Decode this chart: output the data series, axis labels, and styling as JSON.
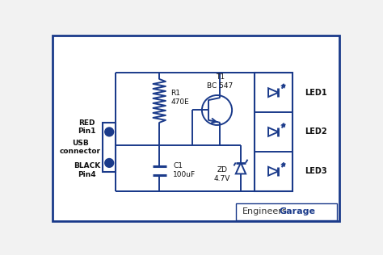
{
  "bg_color": "#f2f2f2",
  "circuit_color": "#1a3a8a",
  "line_color": "#1a3a8a",
  "text_color": "#111111",
  "border_color": "#1a3a8a",
  "figsize": [
    4.74,
    3.16
  ],
  "dpi": 100,
  "labels": {
    "red": "RED\nPin1",
    "black": "BLACK\nPin4",
    "usb": "USB\nconnector",
    "r1": "R1\n470E",
    "c1": "C1\n100uF",
    "t1": "T1\nBC 547",
    "zd": "ZD\n4.7V",
    "led1": "LED1",
    "led2": "LED2",
    "led3": "LED3"
  }
}
